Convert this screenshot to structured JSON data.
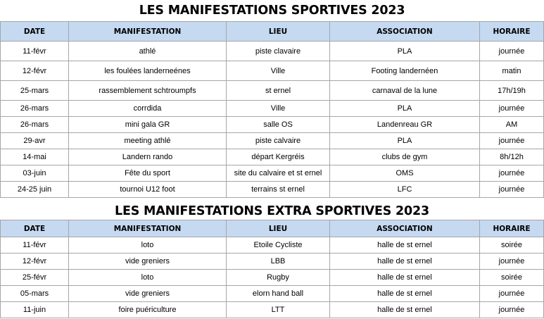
{
  "title1": "LES MANIFESTATIONS SPORTIVES 2023",
  "title2": "LES MANIFESTATIONS EXTRA SPORTIVES 2023",
  "headers": [
    "DATE",
    "MANIFESTATION",
    "LIEU",
    "ASSOCIATION",
    "HORAIRE"
  ],
  "sportives": [
    {
      "date": "11-févr",
      "manifestation": "athlé",
      "lieu": "piste clavaire",
      "association": "PLA",
      "horaire": "journée"
    },
    {
      "date": "12-févr",
      "manifestation": "les foulées landerneénes",
      "lieu": "Ville",
      "association": "Footing landernéen",
      "horaire": "matin"
    },
    {
      "date": "25-mars",
      "manifestation": "rassemblement schtroumpfs",
      "lieu": "st ernel",
      "association": "carnaval de la lune",
      "horaire": "17h/19h"
    },
    {
      "date": "26-mars",
      "manifestation": "corrdida",
      "lieu": "Ville",
      "association": "PLA",
      "horaire": "journée"
    },
    {
      "date": "26-mars",
      "manifestation": "mini gala GR",
      "lieu": "salle OS",
      "association": "Landenreau GR",
      "horaire": "AM"
    },
    {
      "date": "29-avr",
      "manifestation": "meeting athlé",
      "lieu": "piste calvaire",
      "association": "PLA",
      "horaire": "journée"
    },
    {
      "date": "14-mai",
      "manifestation": "Landern rando",
      "lieu": "départ Kergréis",
      "association": "clubs de gym",
      "horaire": "8h/12h"
    },
    {
      "date": "03-juin",
      "manifestation": "Fête du sport",
      "lieu": "site du calvaire et st ernel",
      "association": "OMS",
      "horaire": "journée"
    },
    {
      "date": "24-25 juin",
      "manifestation": "tournoi U12 foot",
      "lieu": "terrains st ernel",
      "association": "LFC",
      "horaire": "journée"
    }
  ],
  "extra": [
    {
      "date": "11-févr",
      "manifestation": "loto",
      "lieu": "Etoile Cycliste",
      "association": "halle de st ernel",
      "horaire": "soirée"
    },
    {
      "date": "12-févr",
      "manifestation": "vide greniers",
      "lieu": "LBB",
      "association": "halle de st ernel",
      "horaire": "journée"
    },
    {
      "date": "25-févr",
      "manifestation": "loto",
      "lieu": "Rugby",
      "association": "halle de st ernel",
      "horaire": "soirée"
    },
    {
      "date": "05-mars",
      "manifestation": "vide greniers",
      "lieu": "elorn hand ball",
      "association": "halle de st ernel",
      "horaire": "journée"
    },
    {
      "date": "11-juin",
      "manifestation": "foire puériculture",
      "lieu": "LTT",
      "association": "halle de st ernel",
      "horaire": "journée"
    }
  ]
}
